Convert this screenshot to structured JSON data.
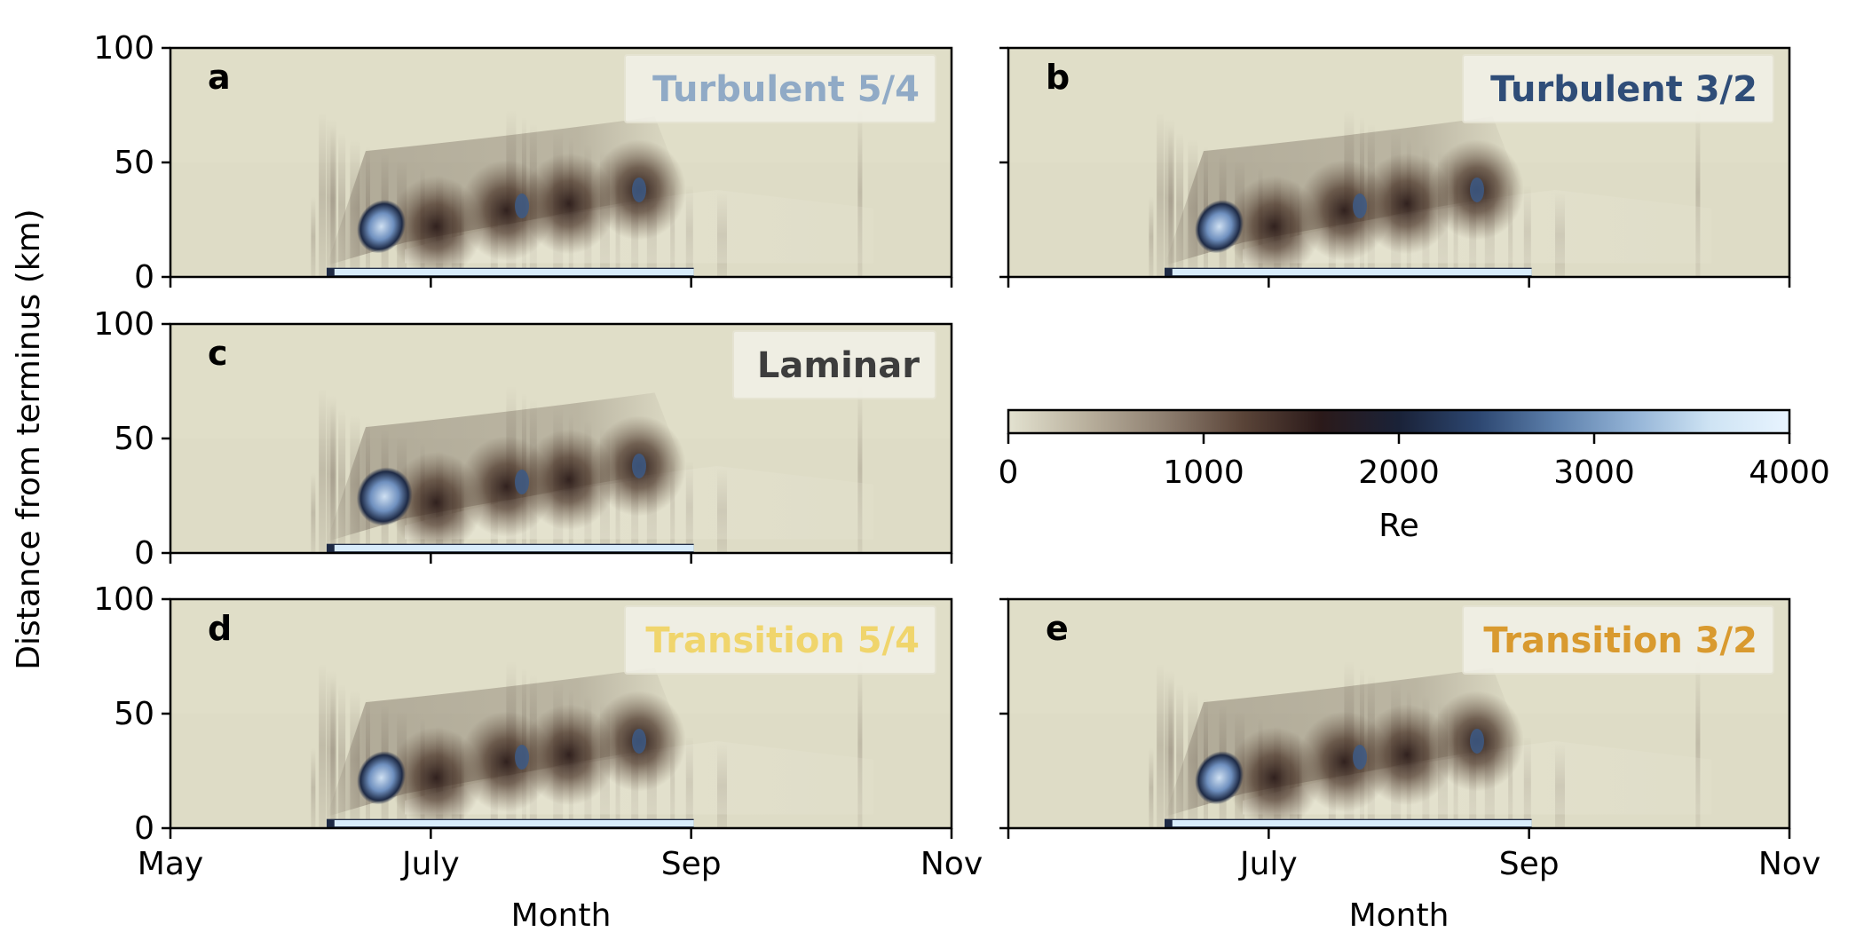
{
  "chart_data": {
    "type": "heatmap",
    "ylabel": "Distance from terminus (km)",
    "xlabel": "Month",
    "x_ticks": [
      "May",
      "July",
      "Sep",
      "Nov"
    ],
    "y_ticks": [
      "0",
      "50",
      "100"
    ],
    "ylim": [
      0,
      100
    ],
    "colorbar": {
      "label": "Re",
      "ticks": [
        "0",
        "1000",
        "2000",
        "3000",
        "4000"
      ],
      "range": [
        0,
        4000
      ],
      "colors": [
        "#e3e2d0",
        "#b9b09d",
        "#8e7f70",
        "#5a4438",
        "#2b1a1a",
        "#1a2238",
        "#2c4670",
        "#5c7fab",
        "#93b3d6",
        "#cfe4f4",
        "#e8f4ff"
      ]
    },
    "panels": [
      {
        "letter": "a",
        "title": "Turbulent 5/4",
        "title_color": "#90aac6"
      },
      {
        "letter": "b",
        "title": "Turbulent 3/2",
        "title_color": "#2f4d78"
      },
      {
        "letter": "c",
        "title": "Laminar",
        "title_color": "#3d3d3d"
      },
      {
        "letter": "d",
        "title": "Transition 5/4",
        "title_color": "#f0d56c"
      },
      {
        "letter": "e",
        "title": "Transition 3/2",
        "title_color": "#d99a2f"
      }
    ]
  }
}
